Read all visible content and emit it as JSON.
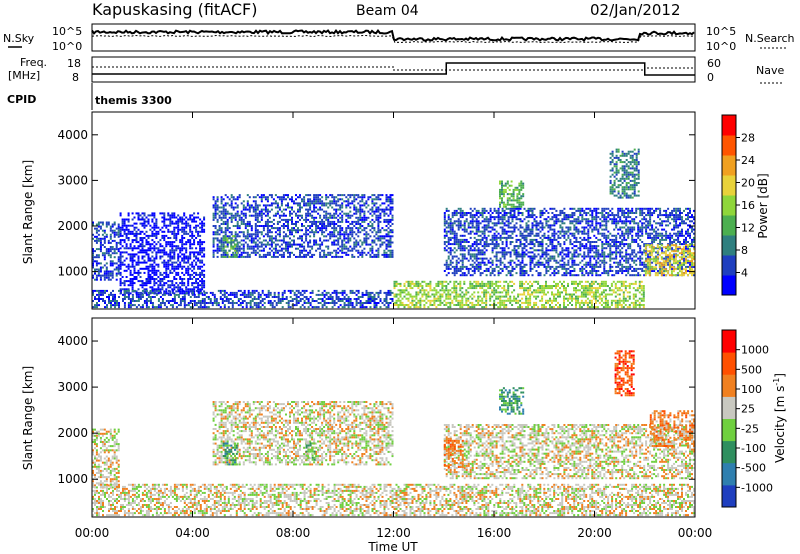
{
  "header": {
    "station": "Kapuskasing (fitACF)",
    "beam": "Beam 04",
    "date": "02/Jan/2012"
  },
  "panels": {
    "nsky": {
      "label": "N.Sky",
      "ticks": [
        "10^5",
        "10^0"
      ]
    },
    "nsearch": {
      "label": "N.Search",
      "ticks": [
        "10^5",
        "10^0"
      ]
    },
    "freq": {
      "label1": "Freq.",
      "label2": "[MHz]",
      "ticks": [
        "18",
        "8"
      ]
    },
    "nave": {
      "label": "Nave",
      "ticks": [
        "60",
        "0"
      ]
    },
    "cpid": {
      "label": "CPID",
      "value": "themis 3300"
    }
  },
  "axes": {
    "ylabel": "Slant Range [km]",
    "xlabel": "Time UT",
    "yticks": [
      "4000",
      "3000",
      "2000",
      "1000"
    ],
    "xticks": [
      "00:00",
      "04:00",
      "08:00",
      "12:00",
      "16:00",
      "20:00",
      "00:00"
    ]
  },
  "colorbars": {
    "power": {
      "label": "Power [dB]",
      "ticks": [
        "28",
        "24",
        "20",
        "16",
        "12",
        "8",
        "4"
      ],
      "colors": [
        "#0000ff",
        "#1f3fbf",
        "#2f7f7f",
        "#4caf50",
        "#8fd63a",
        "#e8d23a",
        "#f0a020",
        "#ff5500",
        "#ff0000"
      ]
    },
    "velocity": {
      "label": "Velocity [m s",
      "label_sup": "-1",
      "label_end": "]",
      "ticks": [
        "1000",
        "500",
        "100",
        "25",
        "-25",
        "-100",
        "-500",
        "-1000"
      ],
      "colors": [
        "#1f3fbf",
        "#2f7faf",
        "#2f8f5f",
        "#6fcf3f",
        "#c8c8c0",
        "#f08020",
        "#ff5000",
        "#ff0000"
      ]
    }
  },
  "chart_data": [
    {
      "type": "heatmap",
      "title": "Power",
      "ylabel": "Slant Range [km]",
      "xlabel": "Time UT",
      "xlim": [
        0,
        24
      ],
      "ylim": [
        180,
        4500
      ],
      "colorbar": {
        "label": "Power [dB]",
        "range": [
          0,
          32
        ]
      },
      "scatter_regions": [
        {
          "t0": 0.0,
          "t1": 1.1,
          "r0": 800,
          "r1": 2100,
          "level": 1
        },
        {
          "t0": 1.1,
          "t1": 4.5,
          "r0": 500,
          "r1": 2300,
          "level": 0
        },
        {
          "t0": 4.8,
          "t1": 12.0,
          "r0": 1300,
          "r1": 2700,
          "level": 1
        },
        {
          "t0": 5.2,
          "t1": 5.8,
          "r0": 1300,
          "r1": 1800,
          "level": 3
        },
        {
          "t0": 0.0,
          "t1": 12.0,
          "r0": 200,
          "r1": 600,
          "level": 1
        },
        {
          "t0": 12.0,
          "t1": 22.0,
          "r0": 200,
          "r1": 800,
          "level": 4
        },
        {
          "t0": 14.0,
          "t1": 24.0,
          "r0": 900,
          "r1": 2400,
          "level": 1
        },
        {
          "t0": 16.2,
          "t1": 17.2,
          "r0": 2400,
          "r1": 3000,
          "level": 3
        },
        {
          "t0": 20.6,
          "t1": 21.8,
          "r0": 2600,
          "r1": 3700,
          "level": 2
        },
        {
          "t0": 22.0,
          "t1": 24.0,
          "r0": 900,
          "r1": 1600,
          "level": 5
        }
      ]
    },
    {
      "type": "heatmap",
      "title": "Velocity",
      "ylabel": "Slant Range [km]",
      "xlabel": "Time UT",
      "xlim": [
        0,
        24
      ],
      "ylim": [
        180,
        4500
      ],
      "colorbar": {
        "label": "Velocity [m s-1]",
        "range": [
          -1000,
          1000
        ]
      },
      "scatter_regions": [
        {
          "t0": 0.0,
          "t1": 1.1,
          "r0": 800,
          "r1": 2100,
          "level": 4
        },
        {
          "t0": 4.8,
          "t1": 12.0,
          "r0": 1300,
          "r1": 2700,
          "level": 4
        },
        {
          "t0": 5.2,
          "t1": 5.8,
          "r0": 1300,
          "r1": 1800,
          "level": 2
        },
        {
          "t0": 8.5,
          "t1": 8.9,
          "r0": 1400,
          "r1": 1800,
          "level": 3
        },
        {
          "t0": 0.0,
          "t1": 24.0,
          "r0": 200,
          "r1": 900,
          "level": 4
        },
        {
          "t0": 14.0,
          "t1": 24.0,
          "r0": 1000,
          "r1": 2200,
          "level": 4
        },
        {
          "t0": 14.0,
          "t1": 14.8,
          "r0": 1200,
          "r1": 1900,
          "level": 5
        },
        {
          "t0": 16.2,
          "t1": 17.2,
          "r0": 2400,
          "r1": 3000,
          "level": 2
        },
        {
          "t0": 20.8,
          "t1": 21.6,
          "r0": 2800,
          "r1": 3800,
          "level": 6
        },
        {
          "t0": 22.2,
          "t1": 24.0,
          "r0": 1700,
          "r1": 2500,
          "level": 5
        }
      ]
    }
  ]
}
